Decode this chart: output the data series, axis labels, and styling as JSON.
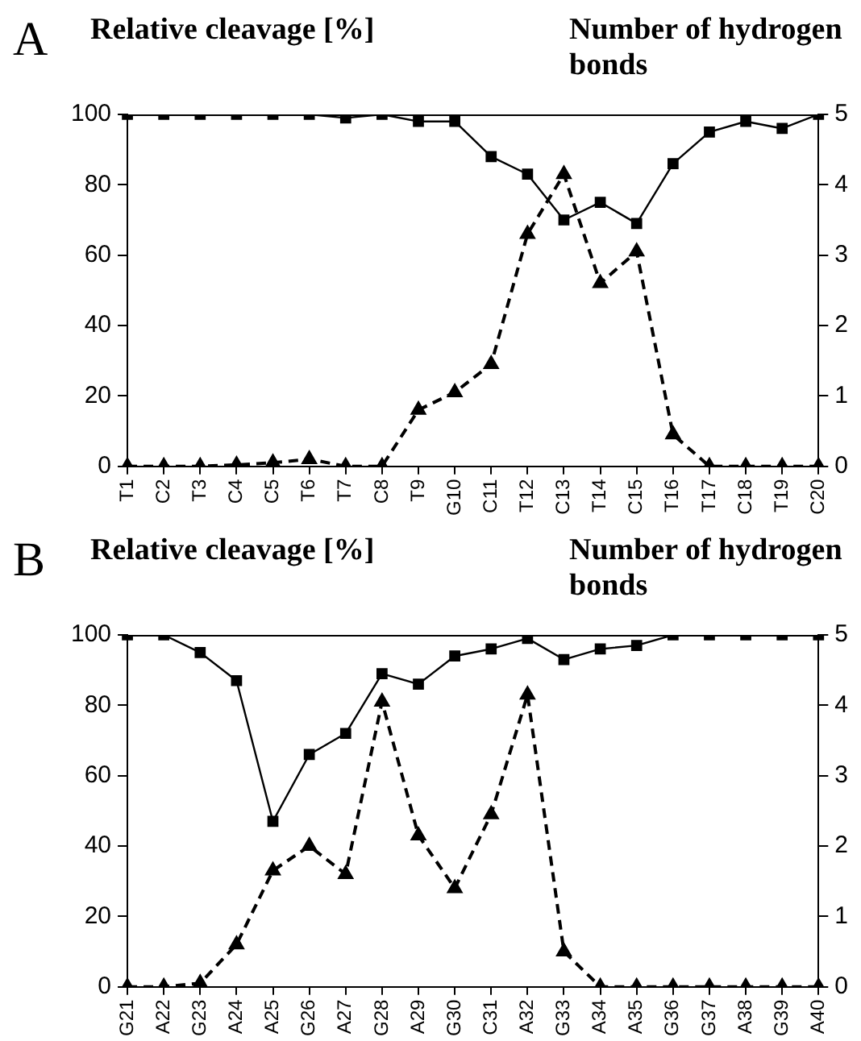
{
  "chart_data": [
    {
      "type": "line",
      "title": "A",
      "ylabel": "Relative cleavage [%]",
      "y2label": "Number of hydrogen bonds",
      "categories": [
        "T1",
        "C2",
        "T3",
        "C4",
        "C5",
        "T6",
        "T7",
        "C8",
        "T9",
        "G10",
        "C11",
        "T12",
        "C13",
        "T14",
        "C15",
        "T16",
        "T17",
        "C18",
        "T19",
        "C20"
      ],
      "series": [
        {
          "color": "#000000",
          "marker": "square",
          "line_style": "solid",
          "values": [
            100,
            100,
            100,
            100,
            100,
            100,
            99,
            100,
            98,
            98,
            88,
            83,
            70,
            75,
            69,
            86,
            95,
            98,
            96,
            100
          ]
        },
        {
          "color": "#000000",
          "marker": "triangle",
          "line_style": "dashed",
          "axis": "y2",
          "values": [
            0,
            0,
            0,
            0.02,
            0.05,
            0.1,
            0,
            0,
            0.8,
            1.05,
            1.45,
            3.3,
            4.15,
            2.6,
            3.05,
            0.45,
            0,
            0,
            0,
            0
          ]
        }
      ],
      "ylim": [
        0,
        100
      ],
      "yticks": [
        0,
        20,
        40,
        60,
        80,
        100
      ],
      "y2lim": [
        0,
        5
      ],
      "y2ticks": [
        0,
        1,
        2,
        3,
        4,
        5
      ],
      "grid": false,
      "legend": false
    },
    {
      "type": "line",
      "title": "B",
      "ylabel": "Relative cleavage [%]",
      "y2label": "Number of hydrogen bonds",
      "categories": [
        "G21",
        "A22",
        "G23",
        "A24",
        "A25",
        "G26",
        "A27",
        "G28",
        "A29",
        "G30",
        "C31",
        "A32",
        "G33",
        "A34",
        "A35",
        "G36",
        "G37",
        "A38",
        "G39",
        "A40"
      ],
      "series": [
        {
          "color": "#000000",
          "marker": "square",
          "line_style": "solid",
          "values": [
            100,
            100,
            95,
            87,
            47,
            66,
            72,
            89,
            86,
            94,
            96,
            99,
            93,
            96,
            97,
            100,
            100,
            100,
            100,
            100
          ]
        },
        {
          "color": "#000000",
          "marker": "triangle",
          "line_style": "dashed",
          "axis": "y2",
          "values": [
            0,
            0,
            0.05,
            0.6,
            1.65,
            2,
            1.6,
            4.05,
            2.15,
            1.4,
            2.45,
            4.15,
            0.5,
            0,
            0,
            0,
            0,
            0,
            0,
            0
          ]
        }
      ],
      "ylim": [
        0,
        100
      ],
      "yticks": [
        0,
        20,
        40,
        60,
        80,
        100
      ],
      "y2lim": [
        0,
        5
      ],
      "y2ticks": [
        0,
        1,
        2,
        3,
        4,
        5
      ],
      "grid": false,
      "legend": false
    }
  ]
}
